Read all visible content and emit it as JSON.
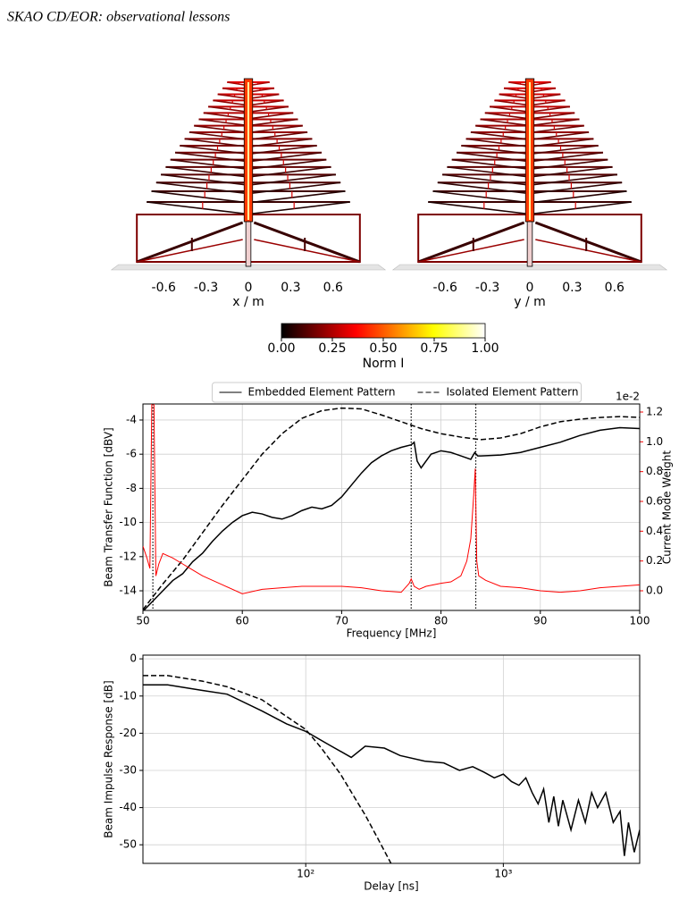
{
  "header": {
    "running_title": "SKAO CD/EOR: observational lessons"
  },
  "figure": {
    "panels": [
      {
        "xlabel": "x / m",
        "xlim": [
          -0.97,
          0.97
        ],
        "xticks": [
          -0.6,
          -0.3,
          0,
          0.3,
          0.6
        ]
      },
      {
        "xlabel": "y / m",
        "xlim": [
          -0.97,
          0.97
        ],
        "xticks": [
          -0.6,
          -0.3,
          0,
          0.3,
          0.6
        ]
      }
    ],
    "colorbar": {
      "label": "Norm I",
      "colormap": "hot",
      "lim": [
        0,
        1
      ],
      "ticks": [
        {
          "value": 0,
          "label": "0.00"
        },
        {
          "value": 0.25,
          "label": "0.25"
        },
        {
          "value": 0.5,
          "label": "0.50"
        },
        {
          "value": 0.75,
          "label": "0.75"
        },
        {
          "value": 1,
          "label": "1.00"
        }
      ]
    }
  },
  "chart_data": [
    {
      "type": "line",
      "xlabel": "Frequency [MHz]",
      "ylabel": "Beam Transfer Function [dBV]",
      "y2label": "Current Mode Weight",
      "y2_offset_label": "1e-2",
      "y2color": "#ff0000",
      "xlim": [
        50,
        100
      ],
      "xticks": [
        50,
        60,
        70,
        80,
        90,
        100
      ],
      "ylim": [
        -15.15,
        -3.06
      ],
      "yticks": [
        -14,
        -12,
        -10,
        -8,
        -6,
        -4
      ],
      "y2lim": [
        -0.132,
        1.254
      ],
      "y2ticks": [
        {
          "value": 0,
          "label": "0.0"
        },
        0.2,
        0.4,
        0.6,
        0.8,
        {
          "value": 1,
          "label": "1.0"
        },
        1.2
      ],
      "grid": true,
      "legend": "top",
      "vlines": [
        51,
        77,
        83.5
      ],
      "vline_style": "dotted",
      "series": [
        {
          "name": "Embedded Element Pattern",
          "color": "#000000",
          "linestyle": "solid",
          "x": [
            50,
            51,
            52,
            53,
            54,
            55,
            56,
            57,
            58,
            59,
            60,
            61,
            62,
            63,
            64,
            65,
            66,
            67,
            68,
            69,
            70,
            71,
            72,
            73,
            74,
            75,
            76,
            77,
            77.3,
            77.6,
            78,
            79,
            80,
            81,
            82,
            83,
            83.4,
            83.7,
            84,
            86,
            88,
            90,
            92,
            94,
            96,
            98,
            100
          ],
          "values": [
            -15.2,
            -14.6,
            -14.0,
            -13.4,
            -13.0,
            -12.3,
            -11.8,
            -11.1,
            -10.5,
            -10.0,
            -9.6,
            -9.4,
            -9.5,
            -9.7,
            -9.8,
            -9.6,
            -9.3,
            -9.1,
            -9.2,
            -9.0,
            -8.5,
            -7.8,
            -7.1,
            -6.5,
            -6.1,
            -5.8,
            -5.6,
            -5.45,
            -5.3,
            -6.4,
            -6.8,
            -6.0,
            -5.8,
            -5.9,
            -6.1,
            -6.3,
            -5.9,
            -6.1,
            -6.1,
            -6.05,
            -5.9,
            -5.6,
            -5.3,
            -4.9,
            -4.6,
            -4.45,
            -4.5
          ]
        },
        {
          "name": "Isolated Element Pattern",
          "color": "#000000",
          "linestyle": "dashed",
          "x": [
            50,
            52,
            54,
            56,
            58,
            60,
            62,
            64,
            66,
            68,
            70,
            72,
            74,
            76,
            78,
            80,
            82,
            84,
            86,
            88,
            90,
            92,
            94,
            96,
            98,
            100
          ],
          "values": [
            -15.1,
            -13.6,
            -12.2,
            -10.6,
            -9.0,
            -7.5,
            -6.0,
            -4.8,
            -3.9,
            -3.45,
            -3.3,
            -3.35,
            -3.7,
            -4.1,
            -4.5,
            -4.8,
            -5.0,
            -5.15,
            -5.05,
            -4.8,
            -4.4,
            -4.1,
            -3.95,
            -3.85,
            -3.8,
            -3.85
          ]
        },
        {
          "color": "#ff0000",
          "linestyle": "solid",
          "axis": "y2",
          "x": [
            50,
            50.4,
            50.7,
            50.9,
            51.0,
            51.1,
            51.3,
            51.6,
            52,
            53,
            54,
            55,
            56,
            58,
            60,
            62,
            64,
            66,
            68,
            70,
            72,
            74,
            76,
            76.8,
            77,
            77.3,
            77.8,
            78.5,
            80,
            81,
            82,
            82.6,
            83,
            83.3,
            83.45,
            83.6,
            83.8,
            84.5,
            86,
            88,
            90,
            92,
            94,
            96,
            98,
            100
          ],
          "values": [
            0.3,
            0.22,
            0.15,
            1.3,
            1.3,
            1.3,
            0.1,
            0.18,
            0.25,
            0.22,
            0.18,
            0.14,
            0.1,
            0.04,
            -0.02,
            0.01,
            0.02,
            0.03,
            0.03,
            0.03,
            0.02,
            0.0,
            -0.01,
            0.05,
            0.08,
            0.03,
            0.01,
            0.03,
            0.05,
            0.06,
            0.1,
            0.2,
            0.35,
            0.65,
            0.82,
            0.2,
            0.1,
            0.07,
            0.03,
            0.02,
            0.0,
            -0.01,
            0.0,
            0.02,
            0.03,
            0.04
          ]
        }
      ]
    },
    {
      "type": "line",
      "xscale": "log",
      "xlabel": "Delay [ns]",
      "ylabel": "Beam Impulse Response [dB]",
      "xlim": [
        15,
        4900
      ],
      "xticks": [
        {
          "value": 100,
          "label": "10²"
        },
        {
          "value": 1000,
          "label": "10³"
        }
      ],
      "ylim": [
        -55,
        1
      ],
      "yticks": [
        0,
        -10,
        -20,
        -30,
        -40,
        -50
      ],
      "grid": true,
      "series": [
        {
          "color": "#000000",
          "linestyle": "solid",
          "x": [
            15,
            20,
            30,
            40,
            60,
            80,
            100,
            130,
            170,
            200,
            250,
            300,
            400,
            500,
            600,
            700,
            800,
            900,
            1000,
            1100,
            1200,
            1300,
            1400,
            1500,
            1600,
            1700,
            1800,
            1900,
            2000,
            2200,
            2400,
            2600,
            2800,
            3000,
            3300,
            3600,
            3900,
            4100,
            4300,
            4600,
            4900
          ],
          "values": [
            -7,
            -7,
            -8.5,
            -9.5,
            -14,
            -17.5,
            -19.5,
            -23,
            -26.5,
            -23.5,
            -24,
            -26,
            -27.5,
            -28,
            -30,
            -29,
            -30.5,
            -32,
            -31,
            -33,
            -34,
            -32,
            -36,
            -39,
            -35,
            -44,
            -37,
            -45,
            -38,
            -46,
            -38,
            -44,
            -36,
            -40,
            -36,
            -44,
            -41,
            -53,
            -44,
            -52,
            -46
          ]
        },
        {
          "color": "#000000",
          "linestyle": "dashed",
          "x": [
            15,
            20,
            30,
            40,
            60,
            80,
            100,
            120,
            150,
            180,
            200,
            230,
            270
          ],
          "values": [
            -4.5,
            -4.5,
            -6,
            -7.5,
            -11,
            -15.5,
            -19,
            -24,
            -31,
            -38,
            -42,
            -48,
            -55
          ]
        }
      ]
    }
  ]
}
